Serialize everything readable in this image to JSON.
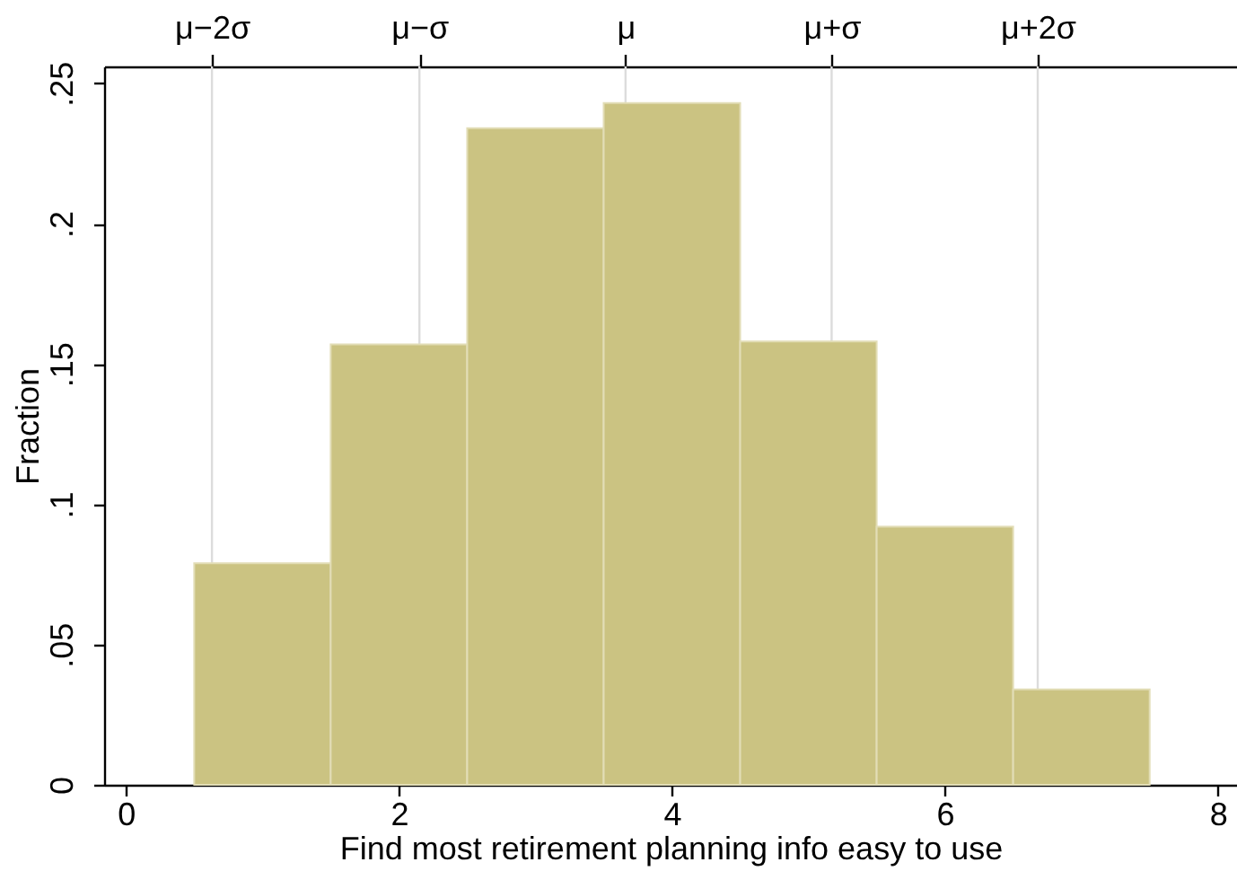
{
  "chart_data": {
    "type": "histogram",
    "xlabel": "Find most retirement planning info easy to use",
    "ylabel": "Fraction",
    "bins": [
      0.5,
      1.5,
      2.5,
      3.5,
      4.5,
      5.5,
      6.5,
      7.5
    ],
    "values": [
      0.079,
      0.157,
      0.234,
      0.243,
      0.158,
      0.092,
      0.034
    ],
    "color": "#cbc382",
    "xlim": [
      -0.16,
      8.14
    ],
    "xticks": [
      0,
      2,
      4,
      6,
      8
    ],
    "ylim": [
      0,
      0.256
    ],
    "yticks": [
      0,
      {
        "value": 0.05,
        "label": ".05"
      },
      {
        "value": 0.1,
        "label": ".1"
      },
      {
        "value": 0.15,
        "label": ".15"
      },
      {
        "value": 0.2,
        "label": ".2"
      },
      {
        "value": 0.25,
        "label": ".25"
      }
    ],
    "ref_lines": [
      {
        "axis": "x",
        "value": 0.63,
        "label": "μ−2σ",
        "color": "#dcdcdc"
      },
      {
        "axis": "x",
        "value": 2.15,
        "label": "μ−σ",
        "color": "#dcdcdc"
      },
      {
        "axis": "x",
        "value": 3.66,
        "label": "μ",
        "color": "#dcdcdc"
      },
      {
        "axis": "x",
        "value": 5.17,
        "label": "μ+σ",
        "color": "#dcdcdc"
      },
      {
        "axis": "x",
        "value": 6.68,
        "label": "μ+2σ",
        "color": "#dcdcdc"
      }
    ]
  }
}
